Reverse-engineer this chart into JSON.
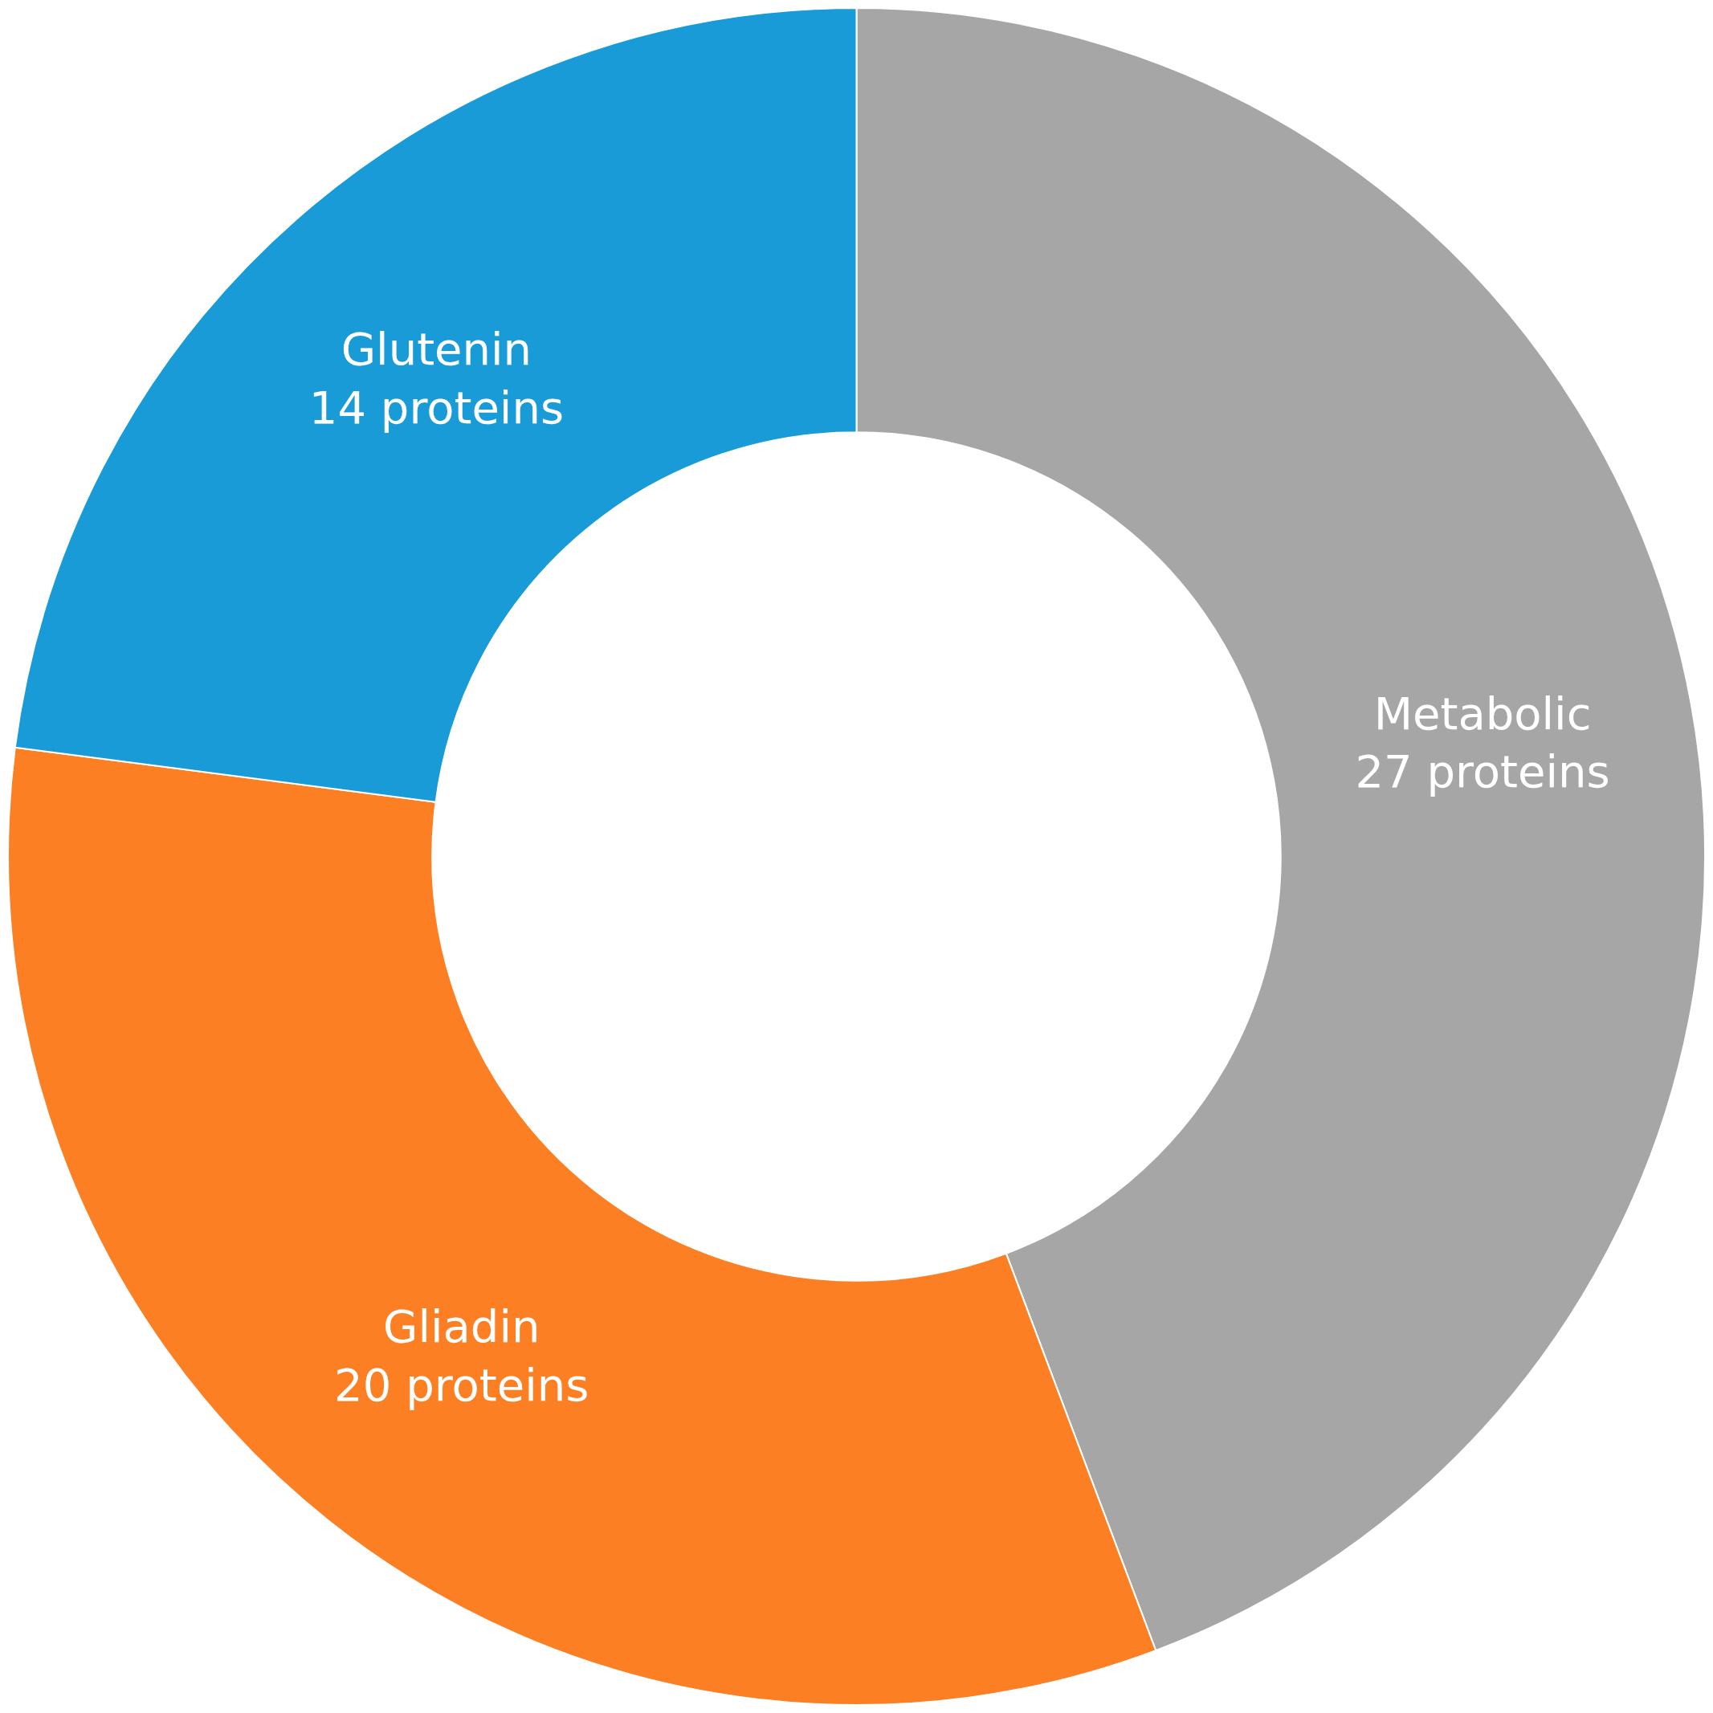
{
  "chart_data": {
    "type": "donut",
    "categories": [
      "Metabolic",
      "Gliadin",
      "Glutenin"
    ],
    "values": [
      27,
      20,
      14
    ],
    "value_labels": [
      "27 proteins",
      "20 proteins",
      "14 proteins"
    ],
    "colors": [
      "#a6a6a6",
      "#fd7f23",
      "#189bd7"
    ],
    "legend": false
  }
}
